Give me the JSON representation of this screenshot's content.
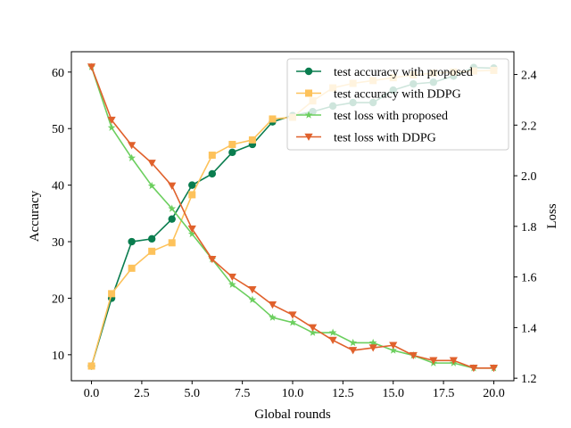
{
  "chart_data": {
    "type": "line",
    "xlabel": "Global rounds",
    "ylabel_left": "Accuracy",
    "ylabel_right": "Loss",
    "x_ticks": [
      "0.0",
      "2.5",
      "5.0",
      "7.5",
      "10.0",
      "12.5",
      "15.0",
      "17.5",
      "20.0"
    ],
    "y_left_ticks": [
      "10",
      "20",
      "30",
      "40",
      "50",
      "60"
    ],
    "y_right_ticks": [
      "1.2",
      "1.4",
      "1.6",
      "1.8",
      "2.0",
      "2.2",
      "2.4"
    ],
    "xlim": [
      -1,
      21
    ],
    "ylim_left": [
      5.4,
      63.6
    ],
    "ylim_right": [
      1.19,
      2.49
    ],
    "legend_position": "top-right",
    "grid": false,
    "x": [
      0,
      1,
      2,
      3,
      4,
      5,
      6,
      7,
      8,
      9,
      10,
      11,
      12,
      13,
      14,
      15,
      16,
      17,
      18,
      19,
      20
    ],
    "series": [
      {
        "name": "test accuracy with proposed",
        "axis": "left",
        "color": "#0a7d4f",
        "marker": "circle",
        "values": [
          8.0,
          20.0,
          30.0,
          30.5,
          34.0,
          40.0,
          42.0,
          45.8,
          47.2,
          51.2,
          52.3,
          53.0,
          54.0,
          54.6,
          54.6,
          56.8,
          57.9,
          58.2,
          59.3,
          60.8,
          60.7
        ]
      },
      {
        "name": "test accuracy with DDPG",
        "axis": "left",
        "color": "#fdc25b",
        "marker": "square",
        "values": [
          8.0,
          20.8,
          25.3,
          28.3,
          29.8,
          38.3,
          45.3,
          47.2,
          48.0,
          51.7,
          52.0,
          54.9,
          57.2,
          58.0,
          58.5,
          59.0,
          59.5,
          59.8,
          60.0,
          60.2,
          60.3
        ]
      },
      {
        "name": "test loss with proposed",
        "axis": "right",
        "color": "#6ccf5f",
        "marker": "star",
        "values": [
          2.43,
          2.19,
          2.07,
          1.96,
          1.87,
          1.77,
          1.67,
          1.57,
          1.51,
          1.44,
          1.42,
          1.38,
          1.38,
          1.34,
          1.34,
          1.31,
          1.29,
          1.26,
          1.26,
          1.24,
          1.24
        ]
      },
      {
        "name": "test loss with DDPG",
        "axis": "right",
        "color": "#e0612c",
        "marker": "triangle-down",
        "values": [
          2.43,
          2.22,
          2.12,
          2.05,
          1.96,
          1.79,
          1.67,
          1.6,
          1.55,
          1.49,
          1.45,
          1.4,
          1.35,
          1.31,
          1.32,
          1.33,
          1.29,
          1.27,
          1.27,
          1.24,
          1.24
        ]
      }
    ]
  }
}
